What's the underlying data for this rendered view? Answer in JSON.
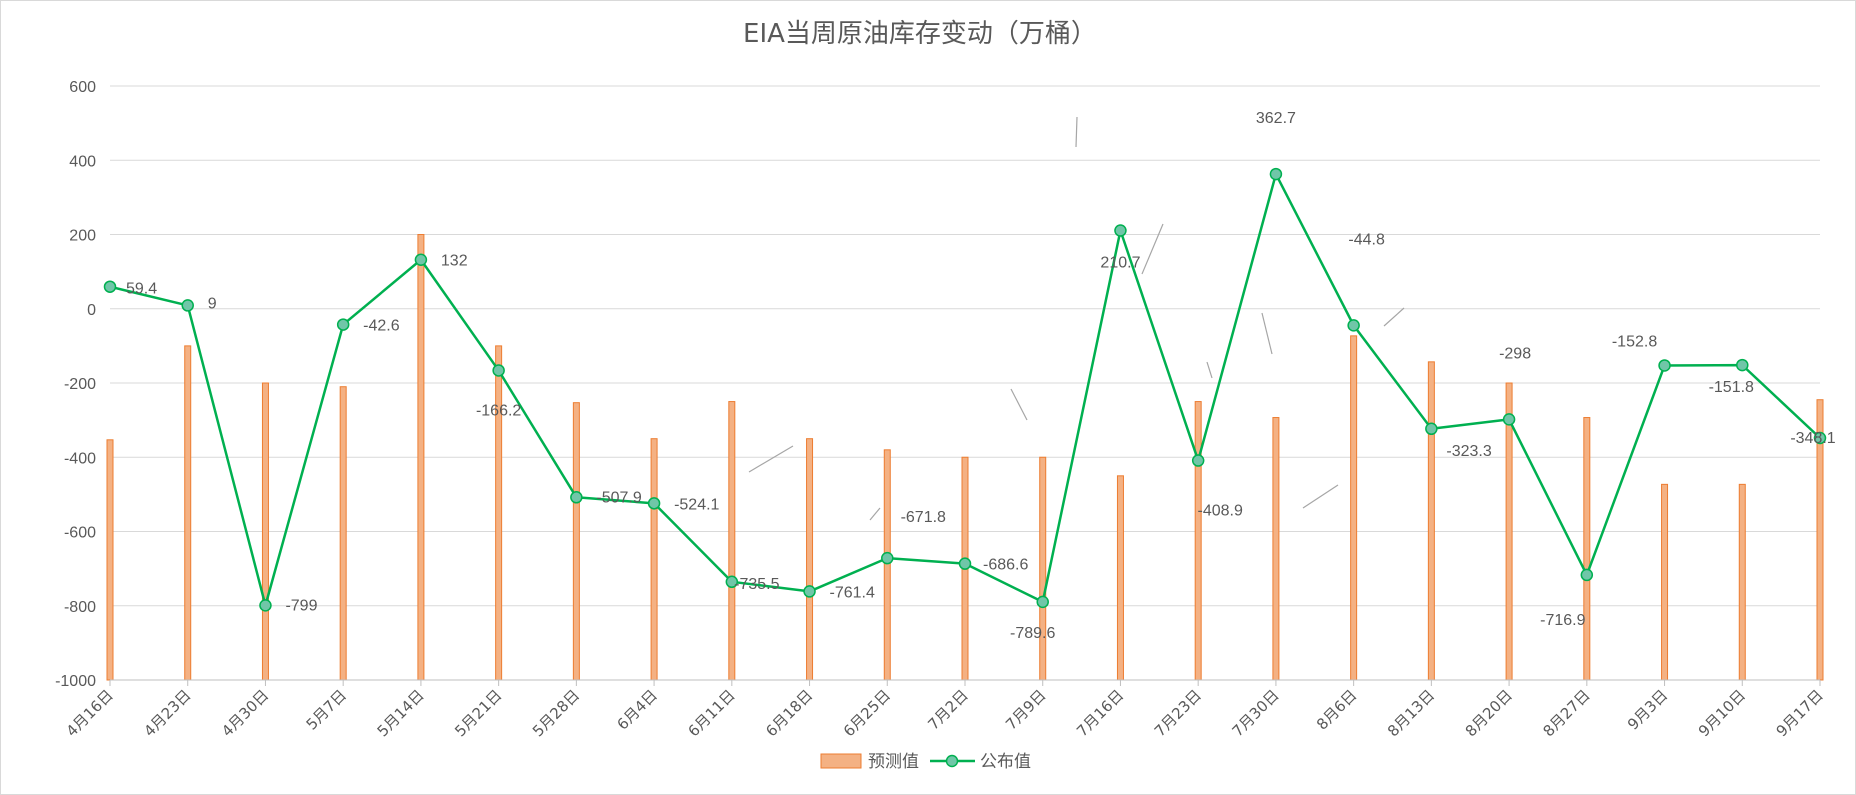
{
  "chart_data": {
    "type": "bar",
    "title": "EIA当周原油库存变动（万桶）",
    "ylim": [
      -1000,
      600
    ],
    "yticks": [
      600,
      400,
      200,
      0,
      -200,
      -400,
      -600,
      -800,
      -1000
    ],
    "grid": true,
    "legend_position": "bottom",
    "categories": [
      "4月16日",
      "4月23日",
      "4月30日",
      "5月7日",
      "5月14日",
      "5月21日",
      "5月28日",
      "6月4日",
      "6月11日",
      "6月18日",
      "6月25日",
      "7月2日",
      "7月9日",
      "7月16日",
      "7月23日",
      "7月30日",
      "8月6日",
      "8月13日",
      "8月20日",
      "8月27日",
      "9月3日",
      "9月10日",
      "9月17日"
    ],
    "series": [
      {
        "name": "预测值",
        "kind": "bar",
        "color": "#f4b183",
        "edge_color": "#ed7d31",
        "values": [
          -353,
          -100,
          -200,
          -210,
          200,
          -100,
          -253,
          -350,
          -250,
          -350,
          -380,
          -400,
          -400,
          -450,
          -250,
          -293,
          -73,
          -143,
          -200,
          -293,
          -473,
          -473,
          -245
        ]
      },
      {
        "name": "公布值",
        "kind": "line",
        "color": "#00b050",
        "marker_color": "#70c6a8",
        "values": [
          59.4,
          9,
          -799,
          -42.6,
          132,
          -166.2,
          -507.9,
          -524.1,
          -735.5,
          -761.4,
          -671.8,
          -686.6,
          -789.6,
          210.7,
          -408.9,
          362.7,
          -44.8,
          -323.3,
          -298,
          -716.9,
          -152.8,
          -151.8,
          -348.1
        ],
        "labels": [
          "59.4",
          "9",
          "-799",
          "-42.6",
          "132",
          "-166.2",
          "-507.9",
          "-524.1",
          "-735.5",
          "-761.4",
          "-671.8",
          "-686.6",
          "-789.6",
          "210.7",
          "-408.9",
          "362.7",
          "-44.8",
          "-323.3",
          "-298",
          "-716.9",
          "-152.8",
          "-151.8",
          "-348.1"
        ]
      }
    ]
  }
}
